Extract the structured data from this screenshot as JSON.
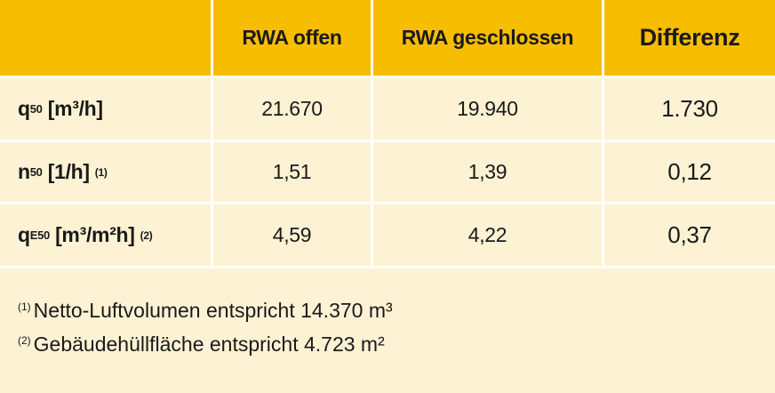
{
  "table": {
    "header": [
      "RWA offen",
      "RWA geschlossen",
      "Differenz"
    ],
    "rows": [
      {
        "label": {
          "symbol": "q",
          "subscript": "50",
          "unit": "[m³/h]"
        },
        "cells": [
          "21.670",
          "19.940",
          "1.730"
        ]
      },
      {
        "label": {
          "symbol": "n",
          "subscript": "50",
          "unit": "[1/h]",
          "note": "(1)"
        },
        "cells": [
          "1,51",
          "1,39",
          "0,12"
        ]
      },
      {
        "label": {
          "symbol": "q",
          "subscript": "E50",
          "unit": "[m³/m²h]",
          "note": "(2)"
        },
        "cells": [
          "4,59",
          "4,22",
          "0,37"
        ]
      }
    ],
    "notes": [
      {
        "marker": "(1)",
        "text": "Netto-Luftvolumen entspricht 14.370 m³"
      },
      {
        "marker": "(2)",
        "text": "Gebäudehüllfläche entspricht 4.723 m²"
      }
    ]
  }
}
